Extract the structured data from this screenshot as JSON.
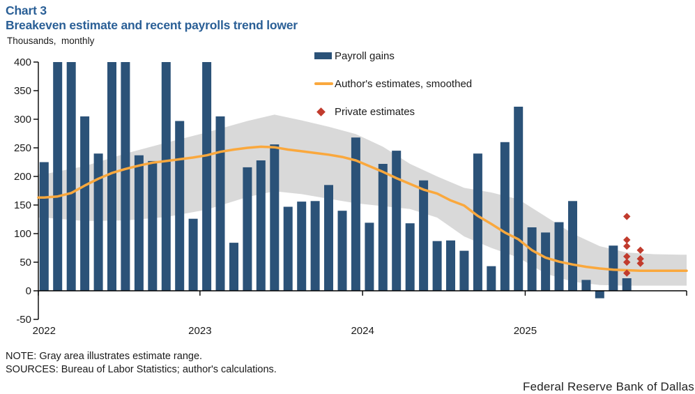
{
  "header": {
    "chart_label": "Chart 3",
    "title": "Breakeven estimate and recent payrolls trend lower",
    "units_label": "Thousands,  monthly"
  },
  "legend": [
    {
      "label": "Payroll gains",
      "type": "bar-swatch"
    },
    {
      "label": "Author's estimates, smoothed",
      "type": "line-swatch"
    },
    {
      "label": "Private estimates",
      "type": "diamond-swatch"
    }
  ],
  "notes": {
    "note": "NOTE: Gray area illustrates estimate range.",
    "sources": "SOURCES: Bureau of Labor Statistics; author's calculations.",
    "branding": "Federal Reserve Bank of Dallas"
  },
  "colors": {
    "bar": "#2b5278",
    "line": "#faa83d",
    "band": "#d9d9d9",
    "diamond": "#c13b2d",
    "title": "#2a5f96",
    "text": "#1a1a1a",
    "axis": "#000000"
  },
  "chart_data": {
    "type": "bar+line+scatter with range band",
    "title": "Breakeven estimate and recent payrolls trend lower",
    "ylabel": "Thousands, monthly",
    "ylim": [
      -50,
      400
    ],
    "y_ticks": [
      400,
      350,
      300,
      250,
      200,
      150,
      100,
      50,
      0,
      -50
    ],
    "months_start": "2022-01",
    "year_ticks": [
      {
        "label": "2022",
        "tick_i": -0.5,
        "label_i": 0
      },
      {
        "label": "2023",
        "tick_i": 11.5,
        "label_i": 11.5
      },
      {
        "label": "2024",
        "tick_i": 23.5,
        "label_i": 23.5
      },
      {
        "label": "2025",
        "tick_i": 35.5,
        "label_i": 35.5
      }
    ],
    "payroll_gains": {
      "name": "Payroll gains",
      "values": [
        225,
        400,
        400,
        305,
        240,
        400,
        400,
        237,
        227,
        400,
        297,
        126,
        400,
        305,
        84,
        216,
        228,
        256,
        147,
        156,
        157,
        185,
        140,
        268,
        119,
        222,
        245,
        118,
        193,
        87,
        88,
        70,
        240,
        43,
        260,
        322,
        111,
        102,
        120,
        157,
        19,
        -13,
        79,
        22
      ],
      "clipped_at_top_indices": [
        1,
        2,
        5,
        6,
        9,
        12
      ]
    },
    "authors_estimates": {
      "name": "Author's estimates, smoothed",
      "values": [
        163,
        165,
        171,
        184,
        196,
        206,
        213,
        219,
        224,
        227,
        230,
        233,
        237,
        243,
        247,
        250,
        252,
        251,
        247,
        244,
        241,
        238,
        234,
        228,
        218,
        208,
        197,
        187,
        177,
        170,
        158,
        149,
        131,
        117,
        102,
        90,
        71,
        58,
        51,
        46,
        42,
        39,
        37,
        36,
        35,
        35,
        35,
        35
      ]
    },
    "estimate_range_band": {
      "name": "Estimate range",
      "keypoints": [
        {
          "i": 0,
          "bottom": 128,
          "top": 204
        },
        {
          "i": 3,
          "bottom": 122,
          "top": 218
        },
        {
          "i": 6,
          "bottom": 123,
          "top": 240
        },
        {
          "i": 9,
          "bottom": 129,
          "top": 259
        },
        {
          "i": 12,
          "bottom": 142,
          "top": 277
        },
        {
          "i": 15,
          "bottom": 164,
          "top": 297
        },
        {
          "i": 17,
          "bottom": 174,
          "top": 308
        },
        {
          "i": 19,
          "bottom": 169,
          "top": 298
        },
        {
          "i": 21,
          "bottom": 161,
          "top": 287
        },
        {
          "i": 23,
          "bottom": 153,
          "top": 274
        },
        {
          "i": 25,
          "bottom": 148,
          "top": 252
        },
        {
          "i": 27,
          "bottom": 143,
          "top": 222
        },
        {
          "i": 29,
          "bottom": 128,
          "top": 200
        },
        {
          "i": 31,
          "bottom": 95,
          "top": 180
        },
        {
          "i": 33,
          "bottom": 75,
          "top": 172
        },
        {
          "i": 35,
          "bottom": 58,
          "top": 160
        },
        {
          "i": 37,
          "bottom": 30,
          "top": 130
        },
        {
          "i": 39,
          "bottom": 16,
          "top": 100
        },
        {
          "i": 41,
          "bottom": 10,
          "top": 78
        },
        {
          "i": 43,
          "bottom": 9,
          "top": 67
        },
        {
          "i": 45,
          "bottom": 9,
          "top": 64
        },
        {
          "i": 47,
          "bottom": 9,
          "top": 63
        }
      ]
    },
    "private_estimates": {
      "name": "Private estimates",
      "points": [
        {
          "i": 43,
          "values": [
            130,
            89,
            78,
            60,
            50,
            31
          ]
        },
        {
          "i": 44,
          "values": [
            71,
            56,
            48
          ]
        }
      ]
    }
  }
}
